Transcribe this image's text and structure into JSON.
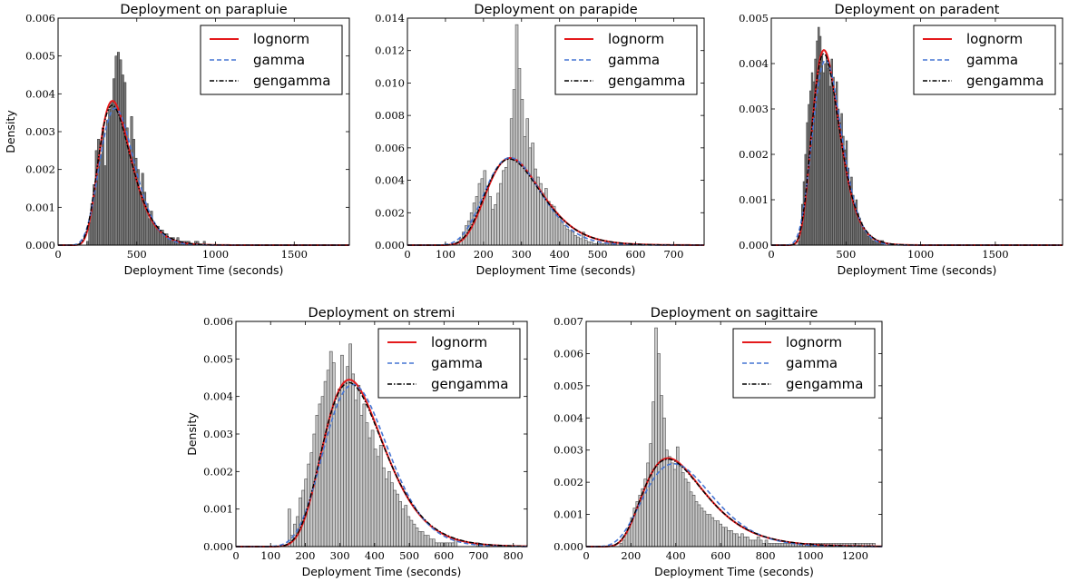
{
  "legend_labels": [
    "lognorm",
    "gamma",
    "gengamma"
  ],
  "colors": {
    "lognorm": "#e41a1c",
    "gamma": "#4575d4",
    "gengamma": "#000000",
    "bar_dark": "#7b7b7b",
    "bar_light": "#c8c8c8"
  },
  "chart_data": [
    {
      "type": "bar",
      "title": "Deployment on parapluie",
      "xlabel": "Deployment Time (seconds)",
      "ylabel": "Density",
      "xlim": [
        0,
        1850
      ],
      "ylim": [
        0,
        0.006
      ],
      "xticks": [
        "0",
        "500",
        "1000",
        "1500"
      ],
      "yticks": [
        "0.000",
        "0.001",
        "0.002",
        "0.003",
        "0.004",
        "0.005",
        "0.006"
      ],
      "legend_position": "top-right",
      "bar_style": "dark",
      "hist": {
        "bin_width": 14,
        "start": 180,
        "values": [
          0.0001,
          0.0006,
          0.0011,
          0.0016,
          0.0025,
          0.0028,
          0.0024,
          0.0031,
          0.0021,
          0.0033,
          0.0036,
          0.0038,
          0.0044,
          0.005,
          0.0051,
          0.0049,
          0.0045,
          0.0043,
          0.0031,
          0.0026,
          0.0034,
          0.0028,
          0.0023,
          0.002,
          0.0014,
          0.0019,
          0.0014,
          0.0011,
          0.0007,
          0.0009,
          0.0006,
          0.0005,
          0.0005,
          0.0004,
          0.0004,
          0.0003,
          0.0003,
          0.0002,
          0.0002,
          0.0002,
          0.0001,
          0.0002,
          0.0001,
          0.0001,
          0.0001,
          0.0001,
          0.0001,
          0,
          0,
          0.0001,
          0.0001,
          0,
          0,
          0.0001
        ]
      },
      "fits": {
        "lognorm": {
          "mu": 5.93,
          "sigma": 0.29
        },
        "gamma": {
          "k": 12.0,
          "theta": 33.0
        },
        "gengamma": {
          "mu": 5.93,
          "sigma": 0.3
        }
      }
    },
    {
      "type": "bar",
      "title": "Deployment on parapide",
      "xlabel": "Deployment Time (seconds)",
      "ylabel": "",
      "xlim": [
        0,
        780
      ],
      "ylim": [
        0,
        0.014
      ],
      "xticks": [
        "0",
        "100",
        "200",
        "300",
        "400",
        "500",
        "600",
        "700"
      ],
      "yticks": [
        "0.000",
        "0.002",
        "0.004",
        "0.006",
        "0.008",
        "0.010",
        "0.012",
        "0.014"
      ],
      "legend_position": "top-right",
      "bar_style": "light",
      "hist": {
        "bin_width": 7,
        "start": 130,
        "values": [
          0.0002,
          0.0004,
          0.0008,
          0.0012,
          0.0015,
          0.002,
          0.0026,
          0.003,
          0.0038,
          0.0041,
          0.0046,
          0.0036,
          0.003,
          0.0022,
          0.0025,
          0.0032,
          0.0038,
          0.0046,
          0.0048,
          0.0054,
          0.0078,
          0.0096,
          0.0136,
          0.0109,
          0.009,
          0.0067,
          0.0078,
          0.006,
          0.0063,
          0.0047,
          0.0042,
          0.0038,
          0.0032,
          0.0035,
          0.0027,
          0.0025,
          0.0024,
          0.002,
          0.0017,
          0.0014,
          0.0012,
          0.001,
          0.0009,
          0.0008,
          0.0006,
          0.0005,
          0.0004,
          0.0008,
          0.0003,
          0.0002,
          0.0002,
          0.0001,
          0.0001,
          0.0001,
          0.0001,
          0.0001,
          0.0001,
          0.0001,
          0.0001,
          0.0001
        ]
      },
      "fits": {
        "lognorm": {
          "mu": 5.67,
          "sigma": 0.265
        },
        "gamma": {
          "k": 14.5,
          "theta": 20.0
        },
        "gengamma": {
          "mu": 5.665,
          "sigma": 0.27
        }
      }
    },
    {
      "type": "bar",
      "title": "Deployment on paradent",
      "xlabel": "Deployment Time (seconds)",
      "ylabel": "",
      "xlim": [
        0,
        1950
      ],
      "ylim": [
        0,
        0.005
      ],
      "xticks": [
        "0",
        "500",
        "1000",
        "1500"
      ],
      "yticks": [
        "0.000",
        "0.001",
        "0.002",
        "0.003",
        "0.004",
        "0.005"
      ],
      "legend_position": "top-right",
      "bar_style": "dark",
      "hist": {
        "bin_width": 11,
        "start": 180,
        "values": [
          0.0001,
          0.0004,
          0.0009,
          0.0014,
          0.002,
          0.0027,
          0.0031,
          0.0034,
          0.0038,
          0.0036,
          0.0041,
          0.0045,
          0.0048,
          0.0046,
          0.0042,
          0.0038,
          0.004,
          0.0042,
          0.0039,
          0.0035,
          0.0041,
          0.0037,
          0.0033,
          0.0036,
          0.003,
          0.0027,
          0.0029,
          0.0024,
          0.0021,
          0.0023,
          0.0017,
          0.0014,
          0.0015,
          0.0011,
          0.0009,
          0.001,
          0.0007,
          0.0006,
          0.0005,
          0.0004,
          0.0003,
          0.0003,
          0.0002,
          0.0002,
          0.0002,
          0.0001,
          0.0001,
          0.0001,
          0.0001,
          0.0001,
          0.0001,
          0.0001
        ]
      },
      "fits": {
        "lognorm": {
          "mu": 5.93,
          "sigma": 0.255
        },
        "gamma": {
          "k": 15.0,
          "theta": 26.0
        },
        "gengamma": {
          "mu": 5.93,
          "sigma": 0.26
        }
      }
    },
    {
      "type": "bar",
      "title": "Deployment on stremi",
      "xlabel": "Deployment Time (seconds)",
      "ylabel": "Density",
      "xlim": [
        0,
        840
      ],
      "ylim": [
        0,
        0.006
      ],
      "xticks": [
        "0",
        "100",
        "200",
        "300",
        "400",
        "500",
        "600",
        "700",
        "800"
      ],
      "yticks": [
        "0.000",
        "0.001",
        "0.002",
        "0.003",
        "0.004",
        "0.005",
        "0.006"
      ],
      "legend_position": "top-right",
      "bar_style": "light",
      "hist": {
        "bin_width": 8,
        "start": 150,
        "values": [
          0.001,
          0.0003,
          0.0006,
          0.0008,
          0.0013,
          0.0015,
          0.0018,
          0.0022,
          0.0025,
          0.003,
          0.0035,
          0.0038,
          0.004,
          0.0044,
          0.0047,
          0.0052,
          0.0049,
          0.0038,
          0.0042,
          0.0051,
          0.0044,
          0.0048,
          0.0054,
          0.0046,
          0.0039,
          0.0043,
          0.0035,
          0.0038,
          0.0033,
          0.0029,
          0.0031,
          0.0026,
          0.0024,
          0.0027,
          0.0021,
          0.0018,
          0.002,
          0.0017,
          0.0015,
          0.0014,
          0.0012,
          0.001,
          0.0011,
          0.0008,
          0.0007,
          0.0006,
          0.0005,
          0.0004,
          0.0004,
          0.0003,
          0.0003,
          0.0002,
          0.0002,
          0.0001,
          0.0001,
          0.0001,
          0.0001,
          0.0001,
          0.0001,
          0.0001,
          0.0002,
          0,
          0,
          0,
          0,
          0,
          0,
          0,
          0.0001
        ]
      },
      "fits": {
        "lognorm": {
          "mu": 5.86,
          "sigma": 0.265
        },
        "gamma": {
          "k": 14.5,
          "theta": 25.0
        },
        "gengamma": {
          "mu": 5.86,
          "sigma": 0.27
        }
      }
    },
    {
      "type": "bar",
      "title": "Deployment on sagittaire",
      "xlabel": "Deployment Time (seconds)",
      "ylabel": "",
      "xlim": [
        0,
        1320
      ],
      "ylim": [
        0,
        0.007
      ],
      "xticks": [
        "0",
        "200",
        "400",
        "600",
        "800",
        "1000",
        "1200"
      ],
      "yticks": [
        "0.000",
        "0.001",
        "0.002",
        "0.003",
        "0.004",
        "0.005",
        "0.006",
        "0.007"
      ],
      "legend_position": "top-right",
      "bar_style": "light",
      "hist": {
        "bin_width": 12,
        "start": 150,
        "values": [
          0.0001,
          0.0002,
          0.0004,
          0.0006,
          0.0009,
          0.0012,
          0.0014,
          0.0016,
          0.0018,
          0.0021,
          0.0026,
          0.0032,
          0.0045,
          0.0068,
          0.006,
          0.0047,
          0.004,
          0.003,
          0.0028,
          0.0026,
          0.0024,
          0.0031,
          0.0025,
          0.0023,
          0.0021,
          0.002,
          0.0017,
          0.0016,
          0.0014,
          0.0013,
          0.0012,
          0.0011,
          0.001,
          0.001,
          0.0009,
          0.0008,
          0.0008,
          0.0007,
          0.0006,
          0.0006,
          0.0005,
          0.0005,
          0.0004,
          0.0004,
          0.0003,
          0.0004,
          0.0003,
          0.0003,
          0.0002,
          0.0002,
          0.0002,
          0.0003,
          0.0002,
          0.0001,
          0.0002,
          0.0001,
          0.0001,
          0.0001,
          0.0001,
          0.0001,
          0.0001,
          0.0001,
          0.0001,
          0.0001,
          0.0001,
          0.0001,
          0.0001,
          0.0001,
          0.0001,
          0.0001,
          0.0001,
          0.0001,
          0.0001,
          0.0001,
          0.0001,
          0.0001,
          0.0001,
          0.0001,
          0.0001,
          0.0001,
          0.0001,
          0.0001,
          0.0001,
          0.0001,
          0.0001,
          0.0001,
          0.0001,
          0.0001,
          0.0001,
          0.0001,
          0.0001,
          0.0001,
          0.0001,
          0.0001,
          0.0001
        ]
      },
      "fits": {
        "lognorm": {
          "mu": 6.04,
          "sigma": 0.37
        },
        "gamma": {
          "k": 7.5,
          "theta": 60.0
        },
        "gengamma": {
          "mu": 6.04,
          "sigma": 0.375
        }
      }
    }
  ]
}
